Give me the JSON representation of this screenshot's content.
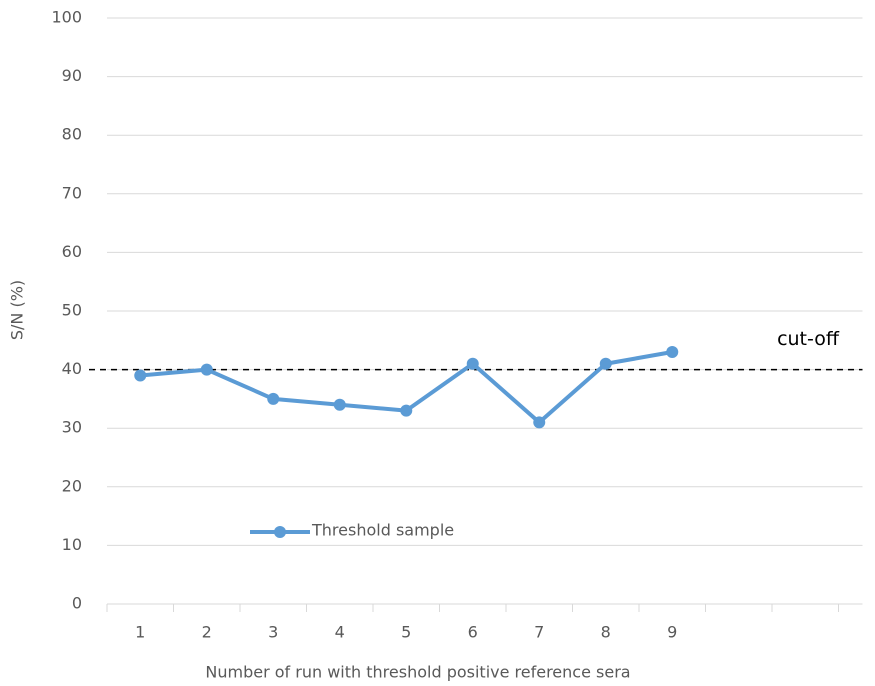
{
  "chart_data": {
    "type": "line",
    "y_label": "S/N (%)",
    "x_label": "Number of run with threshold positive reference sera",
    "categories": [
      "1",
      "2",
      "3",
      "4",
      "5",
      "6",
      "7",
      "8",
      "9",
      null,
      null
    ],
    "series": [
      {
        "name": "Threshold sample",
        "color": "#5b9bd5",
        "values": [
          39,
          40,
          35,
          34,
          33,
          41,
          31,
          41,
          43,
          null,
          null
        ]
      }
    ],
    "ylim": [
      0,
      100
    ],
    "yticks": [
      0,
      10,
      20,
      30,
      40,
      50,
      60,
      70,
      80,
      90,
      100
    ],
    "grid": true,
    "cutoff": {
      "value": 40,
      "label": "cut-off"
    }
  }
}
